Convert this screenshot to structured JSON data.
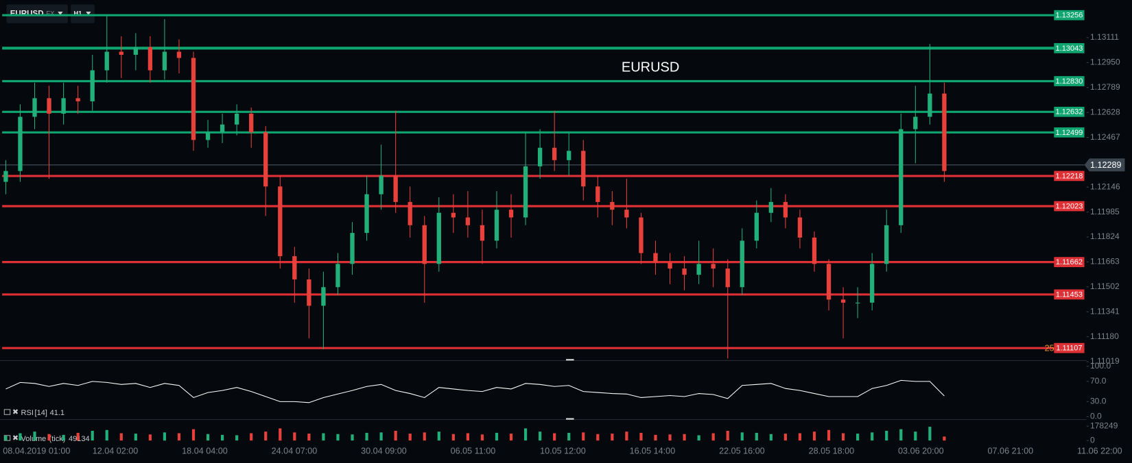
{
  "toolbar": {
    "symbol": "EURUSD",
    "market": "FX",
    "timeframe": "H1"
  },
  "chart_data": [
    {
      "type": "candlestick",
      "title": "EURUSD",
      "xtick_labels": [
        "08.04.2019  01:00",
        "12.04  02:00",
        "18.04  04:00",
        "24.04  07:00",
        "30.04  09:00",
        "06.05  11:00",
        "10.05  12:00",
        "16.05  14:00",
        "22.05  16:00",
        "28.05  18:00",
        "03.06  20:00",
        "07.06  21:00",
        "11.06  22:00"
      ],
      "open": [
        1.1218,
        1.1225,
        1.126,
        1.1272,
        1.1262,
        1.1272,
        1.127,
        1.129,
        1.1302,
        1.13,
        1.1305,
        1.129,
        1.1302,
        1.1298,
        1.1245,
        1.125,
        1.1255,
        1.1262,
        1.125,
        1.1215,
        1.117,
        1.1155,
        1.1138,
        1.115,
        1.1165,
        1.1185,
        1.121,
        1.1222,
        1.1205,
        1.119,
        1.1165,
        1.1198,
        1.1195,
        1.119,
        1.118,
        1.12,
        1.1195,
        1.1228,
        1.124,
        1.1232,
        1.1238,
        1.1215,
        1.1205,
        1.12,
        1.1195,
        1.1172,
        1.1166,
        1.1162,
        1.1158,
        1.1165,
        1.1162,
        1.115,
        1.118,
        1.1198,
        1.1205,
        1.1195,
        1.1182,
        1.1165,
        1.1142,
        1.114,
        1.114,
        1.1165,
        1.119,
        1.1252,
        1.126,
        1.1275
      ],
      "high": [
        1.1232,
        1.1268,
        1.1282,
        1.128,
        1.1282,
        1.128,
        1.13,
        1.1325,
        1.1312,
        1.1314,
        1.1312,
        1.1323,
        1.131,
        1.1302,
        1.1258,
        1.1262,
        1.1268,
        1.1266,
        1.1254,
        1.1222,
        1.1176,
        1.1162,
        1.116,
        1.1172,
        1.1192,
        1.1222,
        1.1242,
        1.1264,
        1.1215,
        1.1196,
        1.1208,
        1.121,
        1.1212,
        1.12,
        1.1212,
        1.121,
        1.125,
        1.1252,
        1.1264,
        1.125,
        1.1245,
        1.1222,
        1.1212,
        1.122,
        1.1198,
        1.118,
        1.1172,
        1.117,
        1.118,
        1.1175,
        1.1168,
        1.1188,
        1.1206,
        1.1214,
        1.121,
        1.12,
        1.1186,
        1.1168,
        1.115,
        1.115,
        1.1172,
        1.12,
        1.1262,
        1.128,
        1.1307,
        1.1282
      ],
      "low": [
        1.121,
        1.1218,
        1.1252,
        1.122,
        1.1255,
        1.1262,
        1.1264,
        1.1282,
        1.1285,
        1.129,
        1.1282,
        1.1284,
        1.1288,
        1.1238,
        1.124,
        1.1243,
        1.1248,
        1.124,
        1.1196,
        1.1162,
        1.114,
        1.1117,
        1.111,
        1.1145,
        1.1158,
        1.118,
        1.12,
        1.1198,
        1.1182,
        1.114,
        1.116,
        1.1185,
        1.1182,
        1.1165,
        1.1175,
        1.1182,
        1.119,
        1.122,
        1.1225,
        1.1222,
        1.1206,
        1.1195,
        1.119,
        1.1188,
        1.1165,
        1.1158,
        1.1152,
        1.1148,
        1.1152,
        1.115,
        1.1104,
        1.1145,
        1.1175,
        1.1192,
        1.1188,
        1.1175,
        1.116,
        1.1135,
        1.1117,
        1.113,
        1.1135,
        1.116,
        1.1185,
        1.123,
        1.1255,
        1.1218
      ],
      "close": [
        1.1225,
        1.126,
        1.1272,
        1.1262,
        1.1272,
        1.127,
        1.129,
        1.1302,
        1.13,
        1.1305,
        1.129,
        1.1302,
        1.1298,
        1.1245,
        1.125,
        1.1255,
        1.1262,
        1.125,
        1.1215,
        1.117,
        1.1155,
        1.1138,
        1.115,
        1.1165,
        1.1185,
        1.121,
        1.1222,
        1.1205,
        1.119,
        1.1165,
        1.1198,
        1.1195,
        1.119,
        1.118,
        1.12,
        1.1195,
        1.1228,
        1.124,
        1.1232,
        1.1238,
        1.1215,
        1.1205,
        1.12,
        1.1195,
        1.1172,
        1.1166,
        1.1162,
        1.1158,
        1.1165,
        1.1162,
        1.115,
        1.118,
        1.1198,
        1.1205,
        1.1195,
        1.1182,
        1.1165,
        1.1142,
        1.114,
        1.114,
        1.1165,
        1.119,
        1.1252,
        1.126,
        1.1275,
        1.1225
      ],
      "up_color": "#21b07a",
      "down_color": "#e8413c",
      "ylim": [
        1.11019,
        1.13353
      ],
      "yticks": [
        1.13111,
        {
          "value": 1.1295,
          "label": "1.12950"
        },
        1.12789,
        1.12628,
        1.12467,
        1.12146,
        1.11985,
        1.11824,
        1.11663,
        1.11502,
        1.11341,
        {
          "value": 1.1118,
          "label": "1.11180"
        },
        1.11019
      ],
      "levels": [
        {
          "value": 1.13256,
          "color": "#0fa571"
        },
        {
          "value": 1.13043,
          "color": "#0fa571"
        },
        {
          "value": 1.1283,
          "label": "1.12830",
          "color": "#0fa571"
        },
        {
          "value": 1.12632,
          "color": "#0fa571"
        },
        {
          "value": 1.12499,
          "color": "#0fa571"
        },
        {
          "value": 1.12218,
          "color": "#df3036"
        },
        {
          "value": 1.12023,
          "color": "#df3036"
        },
        {
          "value": 1.11662,
          "color": "#df3036"
        },
        {
          "value": 1.11453,
          "color": "#df3036"
        },
        {
          "value": 1.11107,
          "color": "#df3036"
        }
      ],
      "current_price": 1.12289,
      "annotation": "25"
    },
    {
      "type": "line",
      "name": "RSI",
      "params": "[14]",
      "last_value": 41.1,
      "color": "#ffffff",
      "values": [
        55,
        68,
        66,
        60,
        66,
        62,
        70,
        68,
        64,
        66,
        58,
        66,
        62,
        38,
        48,
        52,
        58,
        50,
        40,
        30,
        30,
        28,
        38,
        45,
        52,
        60,
        64,
        52,
        46,
        38,
        58,
        55,
        52,
        50,
        58,
        55,
        66,
        64,
        60,
        62,
        50,
        48,
        46,
        45,
        38,
        40,
        42,
        40,
        46,
        44,
        36,
        62,
        64,
        66,
        56,
        52,
        46,
        40,
        40,
        40,
        56,
        62,
        72,
        70,
        70,
        41.1
      ],
      "ylim": [
        0,
        100
      ],
      "yticks": [
        {
          "value": 100,
          "label": "100.0"
        },
        {
          "value": 70,
          "label": "70.0"
        },
        {
          "value": 30,
          "label": "30.0"
        },
        {
          "value": 0,
          "label": "0.0"
        }
      ]
    },
    {
      "type": "bar",
      "name": "Volume",
      "params": "(tick)",
      "last_value": 49134,
      "values": [
        60000,
        90000,
        110000,
        80000,
        70000,
        95000,
        120000,
        130000,
        90000,
        85000,
        75000,
        100000,
        90000,
        140000,
        80000,
        70000,
        65000,
        90000,
        110000,
        150000,
        100000,
        85000,
        90000,
        80000,
        75000,
        95000,
        100000,
        120000,
        85000,
        100000,
        110000,
        80000,
        90000,
        75000,
        95000,
        85000,
        150000,
        110000,
        90000,
        95000,
        100000,
        80000,
        85000,
        110000,
        95000,
        70000,
        75000,
        80000,
        65000,
        90000,
        120000,
        100000,
        95000,
        80000,
        85000,
        90000,
        110000,
        130000,
        90000,
        85000,
        100000,
        120000,
        140000,
        110000,
        170000,
        49134
      ],
      "ylim": [
        0,
        178249
      ],
      "yticks": [
        178249,
        0
      ]
    }
  ]
}
